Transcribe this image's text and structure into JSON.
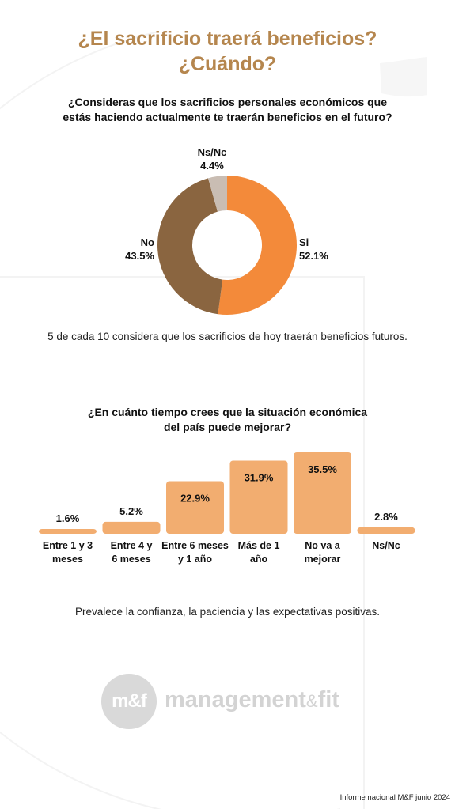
{
  "title_line1": "¿El sacrificio traerá beneficios?",
  "title_line2": "¿Cuándo?",
  "colors": {
    "accent": "#b5864e",
    "si": "#f38a3a",
    "no": "#8a6540",
    "nsnc": "#c9bdb3",
    "bar": "#f2ad70"
  },
  "chart_data": [
    {
      "type": "pie",
      "title_line1": "¿Consideras que los sacrificios personales económicos que",
      "title_line2": "estás haciendo actualmente te traerán beneficios en el futuro?",
      "slices": [
        {
          "name": "Si",
          "value": 52.1,
          "label": "52.1%"
        },
        {
          "name": "No",
          "value": 43.5,
          "label": "43.5%"
        },
        {
          "name": "Ns/Nc",
          "value": 4.4,
          "label": "4.4%"
        }
      ]
    },
    {
      "type": "bar",
      "title_line1": "¿En cuánto tiempo crees que la situación económica",
      "title_line2": "del país puede mejorar?",
      "categories": [
        [
          "Entre 1 y 3",
          "meses"
        ],
        [
          "Entre 4 y",
          "6 meses"
        ],
        [
          "Entre 6 meses",
          "y 1 año"
        ],
        [
          "Más de 1",
          "año"
        ],
        [
          "No va a",
          "mejorar"
        ],
        [
          "Ns/Nc"
        ]
      ],
      "values": [
        1.6,
        5.2,
        22.9,
        31.9,
        35.5,
        2.8
      ],
      "labels": [
        "1.6%",
        "5.2%",
        "22.9%",
        "31.9%",
        "35.5%",
        "2.8%"
      ],
      "ylim": [
        0,
        35.5
      ]
    }
  ],
  "caption1": "5 de cada 10 considera que los sacrificios de hoy traerán beneficios futuros.",
  "caption2": "Prevalece la confianza, la paciencia y las expectativas positivas.",
  "logo": {
    "mark": "m&f",
    "word1": "management",
    "amp": "&",
    "word2": "fit"
  },
  "footer": "Informe nacional M&F junio 2024"
}
